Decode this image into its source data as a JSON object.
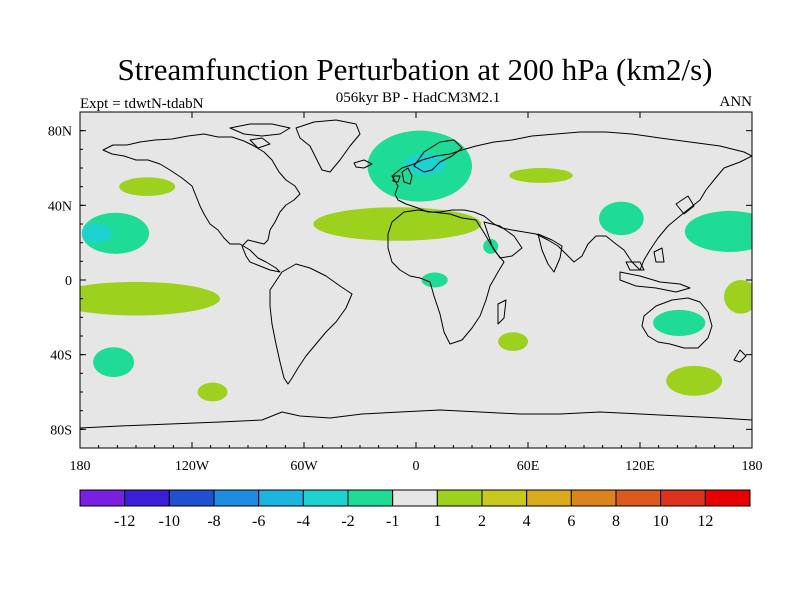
{
  "chart_data": {
    "type": "heatmap",
    "title": "Streamfunction Perturbation at 200 hPa (km2/s)",
    "subtitle_left": "Expt = tdwtN-tdabN",
    "subtitle_center": "056kyr BP - HadCM3M2.1",
    "subtitle_right": "ANN",
    "map_projection": "cylindrical equidistant",
    "lon_range": [
      -180,
      180
    ],
    "lat_range": [
      -90,
      90
    ],
    "x_ticks": [
      {
        "value": -180,
        "label": "180"
      },
      {
        "value": -120,
        "label": "120W"
      },
      {
        "value": -60,
        "label": "60W"
      },
      {
        "value": 0,
        "label": "0"
      },
      {
        "value": 60,
        "label": "60E"
      },
      {
        "value": 120,
        "label": "120E"
      },
      {
        "value": 180,
        "label": "180"
      }
    ],
    "y_ticks": [
      {
        "value": 80,
        "label": "80N"
      },
      {
        "value": 40,
        "label": "40N"
      },
      {
        "value": 0,
        "label": "0"
      },
      {
        "value": -40,
        "label": "40S"
      },
      {
        "value": -80,
        "label": "80S"
      }
    ],
    "background_color": "#e6e6e6",
    "colorbar": {
      "colors": [
        "#7a1ee0",
        "#3a1ed8",
        "#1e50d0",
        "#1e8ce0",
        "#1eb4e0",
        "#1ed2d2",
        "#1edc96",
        "#e6e6e6",
        "#9cd21e",
        "#c8c81e",
        "#dcaa1e",
        "#dc821e",
        "#dc5a1e",
        "#dc321e",
        "#e60000"
      ],
      "labels": [
        "-12",
        "-10",
        "-8",
        "-6",
        "-4",
        "-2",
        "-1",
        "1",
        "2",
        "4",
        "6",
        "8",
        "10",
        "12"
      ]
    },
    "anomaly_regions": [
      {
        "name": "north-atlantic-europe",
        "lon": 2,
        "lat": 61,
        "lon_radius": 28,
        "lat_radius": 19,
        "level": -2,
        "color": "#1edc96"
      },
      {
        "name": "north-atlantic-europe-core",
        "lon": 5,
        "lat": 62,
        "lon_radius": 11,
        "lat_radius": 6,
        "level": -4,
        "color": "#1ed2d2"
      },
      {
        "name": "mediterranean-atlantic-band",
        "lon": -10,
        "lat": 30,
        "lon_radius": 45,
        "lat_radius": 9,
        "level": 2,
        "color": "#9cd21e"
      },
      {
        "name": "central-asia",
        "lon": 67,
        "lat": 56,
        "lon_radius": 17,
        "lat_radius": 4,
        "level": 2,
        "color": "#9cd21e"
      },
      {
        "name": "north-pacific-east",
        "lon": -144,
        "lat": 50,
        "lon_radius": 15,
        "lat_radius": 5,
        "level": 2,
        "color": "#9cd21e"
      },
      {
        "name": "subtropical-pacific-east",
        "lon": -161,
        "lat": 25,
        "lon_radius": 18,
        "lat_radius": 11,
        "level": -2,
        "color": "#1edc96"
      },
      {
        "name": "subtropical-pacific-east-core",
        "lon": -171,
        "lat": 25,
        "lon_radius": 8,
        "lat_radius": 5,
        "level": -4,
        "color": "#1ed2d2"
      },
      {
        "name": "east-asia",
        "lon": 110,
        "lat": 33,
        "lon_radius": 12,
        "lat_radius": 9,
        "level": -2,
        "color": "#1edc96"
      },
      {
        "name": "west-pacific",
        "lon": 168,
        "lat": 26,
        "lon_radius": 24,
        "lat_radius": 11,
        "level": -2,
        "color": "#1edc96"
      },
      {
        "name": "arabia",
        "lon": 40,
        "lat": 18,
        "lon_radius": 4,
        "lat_radius": 4,
        "level": -2,
        "color": "#1edc96"
      },
      {
        "name": "tropical-pacific-south",
        "lon": -150,
        "lat": -10,
        "lon_radius": 45,
        "lat_radius": 9,
        "level": 2,
        "color": "#9cd21e"
      },
      {
        "name": "central-africa",
        "lon": 10,
        "lat": 0,
        "lon_radius": 7,
        "lat_radius": 4,
        "level": -2,
        "color": "#1edc96"
      },
      {
        "name": "south-indian-ocean",
        "lon": 52,
        "lat": -33,
        "lon_radius": 8,
        "lat_radius": 5,
        "level": 2,
        "color": "#9cd21e"
      },
      {
        "name": "south-pacific-west",
        "lon": -162,
        "lat": -44,
        "lon_radius": 11,
        "lat_radius": 8,
        "level": -2,
        "color": "#1edc96"
      },
      {
        "name": "south-pacific-central",
        "lon": -109,
        "lat": -60,
        "lon_radius": 8,
        "lat_radius": 5,
        "level": 2,
        "color": "#9cd21e"
      },
      {
        "name": "australia-south",
        "lon": 141,
        "lat": -23,
        "lon_radius": 14,
        "lat_radius": 7,
        "level": -2,
        "color": "#1edc96"
      },
      {
        "name": "southern-ocean-tasman",
        "lon": 149,
        "lat": -54,
        "lon_radius": 15,
        "lat_radius": 8,
        "level": 2,
        "color": "#9cd21e"
      },
      {
        "name": "south-west-pacific",
        "lon": 174,
        "lat": -9,
        "lon_radius": 9,
        "lat_radius": 9,
        "level": 2,
        "color": "#9cd21e"
      }
    ]
  }
}
